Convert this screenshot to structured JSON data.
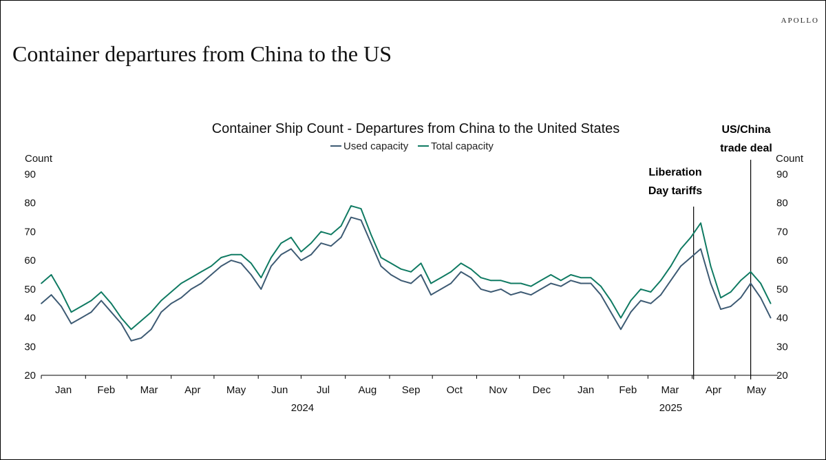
{
  "brand": "APOLLO",
  "page_title": "Container departures from China to the US",
  "chart_data": {
    "type": "line",
    "title": "Container Ship Count - Departures from China to the United States",
    "ylabel_left": "Count",
    "ylabel_right": "Count",
    "ylim": [
      20,
      90
    ],
    "yticks": [
      20,
      30,
      40,
      50,
      60,
      70,
      80,
      90
    ],
    "x_month_ticks": [
      "Jan",
      "Feb",
      "Mar",
      "Apr",
      "May",
      "Jun",
      "Jul",
      "Aug",
      "Sep",
      "Oct",
      "Nov",
      "Dec",
      "Jan",
      "Feb",
      "Mar",
      "Apr",
      "May"
    ],
    "x_year_labels": [
      "2024",
      "2025"
    ],
    "legend": [
      "Used capacity",
      "Total capacity"
    ],
    "legend_position": "top-center",
    "grid": false,
    "colors": {
      "used": "#3d5a73",
      "total": "#0f7a62"
    },
    "annotations": [
      {
        "text_lines": [
          "Liberation",
          "Day tariffs"
        ],
        "date": "2025-04-02"
      },
      {
        "text_lines": [
          "US/China",
          "trade deal"
        ],
        "date": "2025-05-12"
      }
    ],
    "x_unit": "week",
    "x": [
      "2024-01-01",
      "2024-01-08",
      "2024-01-15",
      "2024-01-22",
      "2024-01-29",
      "2024-02-05",
      "2024-02-12",
      "2024-02-19",
      "2024-02-26",
      "2024-03-04",
      "2024-03-11",
      "2024-03-18",
      "2024-03-25",
      "2024-04-01",
      "2024-04-08",
      "2024-04-15",
      "2024-04-22",
      "2024-04-29",
      "2024-05-06",
      "2024-05-13",
      "2024-05-20",
      "2024-05-27",
      "2024-06-03",
      "2024-06-10",
      "2024-06-17",
      "2024-06-24",
      "2024-07-01",
      "2024-07-08",
      "2024-07-15",
      "2024-07-22",
      "2024-07-29",
      "2024-08-05",
      "2024-08-12",
      "2024-08-19",
      "2024-08-26",
      "2024-09-02",
      "2024-09-09",
      "2024-09-16",
      "2024-09-23",
      "2024-09-30",
      "2024-10-07",
      "2024-10-14",
      "2024-10-21",
      "2024-10-28",
      "2024-11-04",
      "2024-11-11",
      "2024-11-18",
      "2024-11-25",
      "2024-12-02",
      "2024-12-09",
      "2024-12-16",
      "2024-12-23",
      "2024-12-30",
      "2025-01-06",
      "2025-01-13",
      "2025-01-20",
      "2025-01-27",
      "2025-02-03",
      "2025-02-10",
      "2025-02-17",
      "2025-02-24",
      "2025-03-03",
      "2025-03-10",
      "2025-03-17",
      "2025-03-24",
      "2025-03-31",
      "2025-04-07",
      "2025-04-14",
      "2025-04-21",
      "2025-04-28",
      "2025-05-05",
      "2025-05-12",
      "2025-05-19",
      "2025-05-26"
    ],
    "series": [
      {
        "name": "Used capacity",
        "values": [
          45,
          48,
          44,
          38,
          40,
          42,
          46,
          42,
          38,
          32,
          33,
          36,
          42,
          45,
          47,
          50,
          52,
          55,
          58,
          60,
          59,
          55,
          50,
          58,
          62,
          64,
          60,
          62,
          66,
          65,
          68,
          75,
          74,
          66,
          58,
          55,
          53,
          52,
          55,
          48,
          50,
          52,
          56,
          54,
          50,
          49,
          50,
          48,
          49,
          48,
          50,
          52,
          51,
          53,
          52,
          52,
          48,
          42,
          36,
          42,
          46,
          45,
          48,
          53,
          58,
          61,
          64,
          52,
          43,
          44,
          47,
          52,
          47,
          40
        ]
      },
      {
        "name": "Total capacity",
        "values": [
          52,
          55,
          49,
          42,
          44,
          46,
          49,
          45,
          40,
          36,
          39,
          42,
          46,
          49,
          52,
          54,
          56,
          58,
          61,
          62,
          62,
          59,
          54,
          61,
          66,
          68,
          63,
          66,
          70,
          69,
          72,
          79,
          78,
          69,
          61,
          59,
          57,
          56,
          59,
          52,
          54,
          56,
          59,
          57,
          54,
          53,
          53,
          52,
          52,
          51,
          53,
          55,
          53,
          55,
          54,
          54,
          51,
          46,
          40,
          46,
          50,
          49,
          53,
          58,
          64,
          68,
          73,
          58,
          47,
          49,
          53,
          56,
          52,
          45
        ]
      }
    ]
  }
}
